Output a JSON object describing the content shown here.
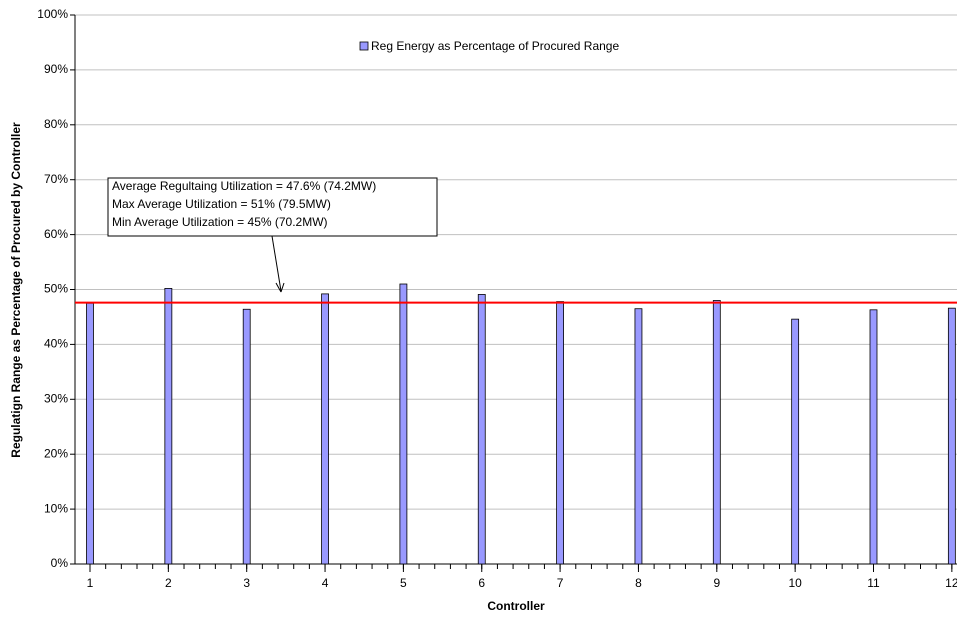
{
  "chart_data": {
    "type": "bar",
    "x_label": "Controller",
    "y_label": "Regulatign Range as Percentage of Procured by Controller",
    "categories": [
      "1",
      "2",
      "3",
      "4",
      "5",
      "6",
      "7",
      "8",
      "9",
      "10",
      "11",
      "12"
    ],
    "series": [
      {
        "name": "Reg Energy as Percentage of Procured Range",
        "color": "#9999ff",
        "values": [
          47.5,
          50.2,
          46.4,
          49.2,
          51.0,
          49.1,
          47.8,
          46.5,
          48.0,
          44.6,
          46.3,
          46.6
        ]
      }
    ],
    "average_line": {
      "value": 47.6,
      "color": "#ff0000"
    },
    "annotations": [
      "Average Regultaing Utilization = 47.6% (74.2MW)",
      "Max Average Utilization = 51% (79.5MW)",
      "Min Average Utilization = 45% (70.2MW)"
    ],
    "ylim": [
      0,
      100
    ],
    "yticks": [
      {
        "value": 0,
        "label": "0%"
      },
      {
        "value": 10,
        "label": "10%"
      },
      {
        "value": 20,
        "label": "20%"
      },
      {
        "value": 30,
        "label": "30%"
      },
      {
        "value": 40,
        "label": "40%"
      },
      {
        "value": 50,
        "label": "50%"
      },
      {
        "value": 60,
        "label": "60%"
      },
      {
        "value": 70,
        "label": "70%"
      },
      {
        "value": 80,
        "label": "80%"
      },
      {
        "value": 90,
        "label": "90%"
      },
      {
        "value": 100,
        "label": "100%"
      }
    ],
    "grid": true
  }
}
